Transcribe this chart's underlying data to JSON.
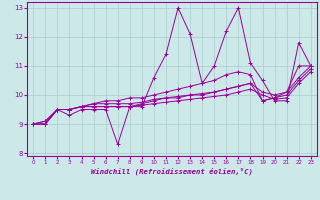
{
  "title": "",
  "xlabel": "Windchill (Refroidissement éolien,°C)",
  "ylabel": "",
  "xlim": [
    -0.5,
    23.5
  ],
  "ylim": [
    7.9,
    13.2
  ],
  "xticks": [
    0,
    1,
    2,
    3,
    4,
    5,
    6,
    7,
    8,
    9,
    10,
    11,
    12,
    13,
    14,
    15,
    16,
    17,
    18,
    19,
    20,
    21,
    22,
    23
  ],
  "yticks": [
    8,
    9,
    10,
    11,
    12,
    13
  ],
  "bg_color": "#cde8e8",
  "line_color": "#990099",
  "grid_color": "#a8cccc",
  "lines": [
    [
      9.0,
      9.0,
      9.5,
      9.3,
      9.5,
      9.5,
      9.5,
      8.3,
      9.6,
      9.6,
      10.6,
      11.4,
      13.0,
      12.1,
      10.4,
      11.0,
      12.2,
      13.0,
      11.1,
      10.5,
      9.8,
      9.8,
      11.8,
      11.0
    ],
    [
      9.0,
      9.0,
      9.5,
      9.5,
      9.6,
      9.6,
      9.6,
      9.6,
      9.6,
      9.7,
      9.8,
      9.9,
      9.9,
      10.0,
      10.0,
      10.1,
      10.2,
      10.3,
      10.4,
      9.8,
      9.9,
      10.0,
      10.5,
      10.9
    ],
    [
      9.0,
      9.0,
      9.5,
      9.5,
      9.6,
      9.6,
      9.6,
      9.6,
      9.6,
      9.65,
      9.7,
      9.75,
      9.8,
      9.85,
      9.9,
      9.95,
      10.0,
      10.1,
      10.2,
      10.0,
      9.85,
      9.9,
      10.4,
      10.8
    ],
    [
      9.0,
      9.1,
      9.5,
      9.5,
      9.6,
      9.7,
      9.7,
      9.7,
      9.7,
      9.75,
      9.85,
      9.9,
      9.95,
      10.0,
      10.05,
      10.1,
      10.2,
      10.3,
      10.4,
      10.1,
      10.0,
      10.1,
      10.6,
      11.0
    ],
    [
      9.0,
      9.1,
      9.5,
      9.5,
      9.6,
      9.7,
      9.8,
      9.8,
      9.9,
      9.9,
      10.0,
      10.1,
      10.2,
      10.3,
      10.4,
      10.5,
      10.7,
      10.8,
      10.7,
      9.8,
      9.9,
      10.1,
      11.0,
      11.0
    ]
  ]
}
